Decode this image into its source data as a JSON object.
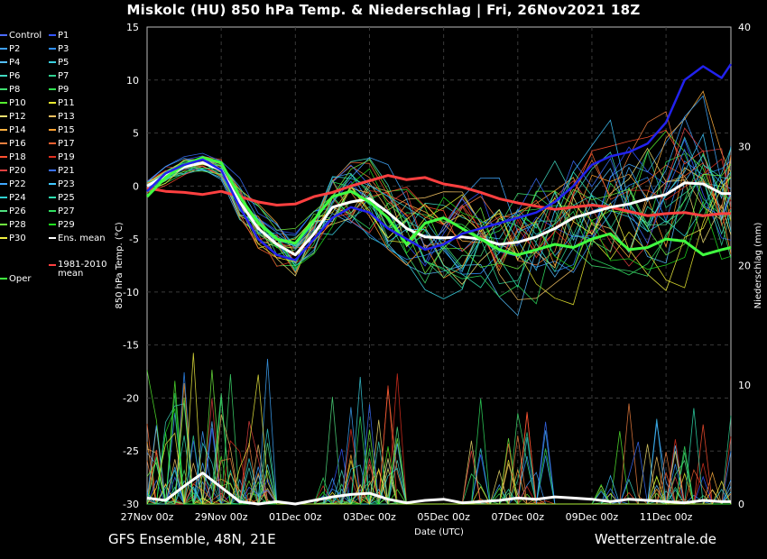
{
  "title": "Miskolc  (HU)  850 hPa Temp. & Niederschlag | Fri, 26Nov2021 18Z",
  "footer": {
    "left": "GFS Ensemble, 48N, 21E",
    "right": "Wetterzentrale.de"
  },
  "legend": [
    {
      "name": "Control",
      "color": "#4b6cff"
    },
    {
      "name": "P1",
      "color": "#3355ff"
    },
    {
      "name": "P2",
      "color": "#3fa0ff"
    },
    {
      "name": "P3",
      "color": "#2f8fff"
    },
    {
      "name": "P4",
      "color": "#55c0ff"
    },
    {
      "name": "P5",
      "color": "#3ad0e0"
    },
    {
      "name": "P6",
      "color": "#40d8c0"
    },
    {
      "name": "P7",
      "color": "#30d090"
    },
    {
      "name": "P8",
      "color": "#40e070"
    },
    {
      "name": "P9",
      "color": "#30e050"
    },
    {
      "name": "P10",
      "color": "#55ee30"
    },
    {
      "name": "P11",
      "color": "#e8e830"
    },
    {
      "name": "P12",
      "color": "#f0e070"
    },
    {
      "name": "P13",
      "color": "#f0c060"
    },
    {
      "name": "P14",
      "color": "#ffb040"
    },
    {
      "name": "P15",
      "color": "#ffa030"
    },
    {
      "name": "P16",
      "color": "#f08040"
    },
    {
      "name": "P17",
      "color": "#f06030"
    },
    {
      "name": "P18",
      "color": "#ff5030"
    },
    {
      "name": "P19",
      "color": "#e03020"
    },
    {
      "name": "P20",
      "color": "#e04040"
    },
    {
      "name": "P21",
      "color": "#3a70ff"
    },
    {
      "name": "P22",
      "color": "#40a8ff"
    },
    {
      "name": "P23",
      "color": "#40c8ff"
    },
    {
      "name": "P24",
      "color": "#30d0d0"
    },
    {
      "name": "P25",
      "color": "#30e0b0"
    },
    {
      "name": "P26",
      "color": "#50e080"
    },
    {
      "name": "P27",
      "color": "#30e060"
    },
    {
      "name": "P28",
      "color": "#70f040"
    },
    {
      "name": "P29",
      "color": "#20e020"
    },
    {
      "name": "P30",
      "color": "#f0f040"
    },
    {
      "name": "Ens. mean",
      "color": "#ffffff"
    },
    {
      "name": "Oper",
      "color": "#40ff40"
    },
    {
      "name": "1981-2010 mean",
      "color": "#ff4040"
    }
  ],
  "chart_data": {
    "type": "line",
    "title": "Miskolc  (HU)  850 hPa Temp. & Niederschlag | Fri, 26Nov2021 18Z",
    "xlabel": "Date (UTC)",
    "ylabel": "850 hPa Temp. (°C)",
    "y2label": "Niederschlag (mm)",
    "ylim": [
      -30,
      15
    ],
    "y2lim": [
      0,
      40
    ],
    "yticks": [
      -30,
      -25,
      -20,
      -15,
      -10,
      -5,
      0,
      5,
      10,
      15
    ],
    "y2ticks": [
      0,
      10,
      20,
      30,
      40
    ],
    "xlim_days": [
      0,
      15.75
    ],
    "xticks": [
      "27Nov 00z",
      "29Nov 00z",
      "01Dec 00z",
      "03Dec 00z",
      "05Dec 00z",
      "07Dec 00z",
      "09Dec 00z",
      "11Dec 00z"
    ],
    "grid": true,
    "legend_position": "left",
    "series": [
      {
        "name": "1981-2010 mean",
        "axis": "temp",
        "color": "#ff4040",
        "x": [
          0,
          0.5,
          1,
          1.5,
          2,
          2.5,
          3,
          3.5,
          4,
          4.5,
          5,
          5.5,
          6,
          6.5,
          7,
          7.5,
          8,
          8.5,
          9,
          9.5,
          10,
          10.5,
          11,
          11.5,
          12,
          12.5,
          13,
          13.5,
          14,
          14.5,
          15,
          15.5,
          15.75
        ],
        "values": [
          -0.2,
          -0.5,
          -0.6,
          -0.8,
          -0.5,
          -1.0,
          -1.5,
          -1.8,
          -1.7,
          -1.0,
          -0.6,
          0.0,
          0.5,
          1.0,
          0.6,
          0.8,
          0.2,
          -0.1,
          -0.6,
          -1.2,
          -1.6,
          -1.9,
          -2.2,
          -2.0,
          -1.8,
          -2.0,
          -2.4,
          -2.8,
          -2.6,
          -2.5,
          -2.8,
          -2.6,
          -2.6
        ]
      },
      {
        "name": "Ens. mean",
        "axis": "temp",
        "color": "#ffffff",
        "x": [
          0,
          0.5,
          1,
          1.5,
          2,
          2.5,
          3,
          3.5,
          4,
          4.5,
          5,
          5.5,
          6,
          6.5,
          7,
          7.5,
          8,
          8.5,
          9,
          9.5,
          10,
          10.5,
          11,
          11.5,
          12,
          12.5,
          13,
          13.5,
          14,
          14.5,
          15,
          15.5,
          15.75
        ],
        "values": [
          0.0,
          1.0,
          1.8,
          2.2,
          1.5,
          -1.5,
          -4.0,
          -5.5,
          -6.5,
          -4.5,
          -2.0,
          -1.5,
          -1.2,
          -2.5,
          -4.0,
          -4.8,
          -4.9,
          -4.8,
          -5.0,
          -5.5,
          -5.3,
          -4.8,
          -4.0,
          -3.0,
          -2.5,
          -2.0,
          -1.7,
          -1.2,
          -0.8,
          0.3,
          0.2,
          -0.7,
          -0.7
        ]
      },
      {
        "name": "Oper",
        "axis": "temp",
        "color": "#40ff40",
        "x": [
          0,
          0.5,
          1,
          1.5,
          2,
          2.5,
          3,
          3.5,
          4,
          4.5,
          5,
          5.5,
          6,
          6.5,
          7,
          7.5,
          8,
          8.5,
          9,
          9.5,
          10,
          10.5,
          11,
          11.5,
          12,
          12.5,
          13,
          13.5,
          14,
          14.5,
          15,
          15.5,
          15.75
        ],
        "values": [
          -1.0,
          0.8,
          2.0,
          2.7,
          2.2,
          -1.0,
          -3.5,
          -5.0,
          -5.4,
          -3.2,
          -1.0,
          -0.5,
          -1.5,
          -3.0,
          -5.5,
          -3.5,
          -3.0,
          -4.0,
          -5.0,
          -6.0,
          -6.5,
          -6.0,
          -5.5,
          -5.8,
          -5.0,
          -4.5,
          -6.0,
          -5.8,
          -5.0,
          -5.2,
          -6.5,
          -6.0,
          -5.8
        ]
      },
      {
        "name": "P1",
        "axis": "temp",
        "color": "#2222ee",
        "x": [
          0,
          0.5,
          1,
          1.5,
          2,
          2.5,
          3,
          3.5,
          4,
          4.5,
          5,
          5.5,
          6,
          6.5,
          7,
          7.5,
          8,
          8.5,
          9,
          9.5,
          10,
          10.5,
          11,
          11.5,
          12,
          12.5,
          13,
          13.5,
          14,
          14.5,
          15,
          15.5,
          15.75
        ],
        "values": [
          -0.5,
          1.2,
          2.0,
          2.5,
          1.5,
          -2.0,
          -5.0,
          -6.5,
          -7.0,
          -5.0,
          -3.0,
          -2.0,
          -2.5,
          -4.0,
          -5.0,
          -6.0,
          -5.5,
          -4.5,
          -4.0,
          -3.5,
          -3.0,
          -2.5,
          -1.5,
          0.0,
          2.0,
          2.8,
          3.2,
          4.0,
          6.0,
          10.0,
          11.3,
          10.2,
          11.5
        ]
      },
      {
        "name": "Ens. mean precip",
        "axis": "precip",
        "color": "#ffffff",
        "x": [
          0,
          0.5,
          1,
          1.5,
          2,
          2.5,
          3,
          3.5,
          4,
          4.5,
          5,
          5.5,
          6,
          6.5,
          7,
          7.5,
          8,
          8.5,
          9,
          9.5,
          10,
          10.5,
          11,
          11.5,
          12,
          12.5,
          13,
          13.5,
          14,
          14.5,
          15,
          15.5,
          15.75
        ],
        "values": [
          0.5,
          0.3,
          1.5,
          2.6,
          1.4,
          0.2,
          0.0,
          0.2,
          0.0,
          0.3,
          0.6,
          0.8,
          0.9,
          0.4,
          0.1,
          0.3,
          0.4,
          0.1,
          0.2,
          0.3,
          0.5,
          0.4,
          0.6,
          0.5,
          0.4,
          0.2,
          0.4,
          0.3,
          0.2,
          0.1,
          0.3,
          0.2,
          0.2
        ]
      }
    ]
  }
}
